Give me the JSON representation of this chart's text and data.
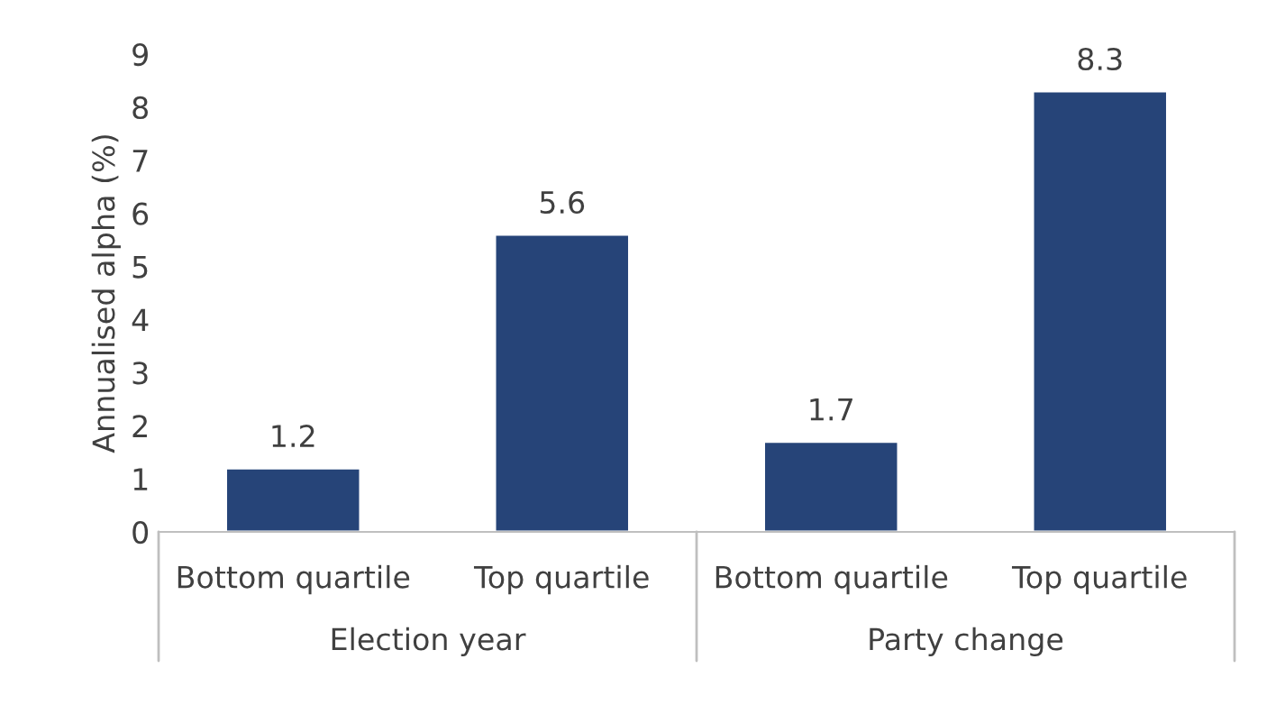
{
  "chart_data": {
    "type": "bar",
    "ylabel": "Annualised alpha (%)",
    "categories": [
      "Bottom quartile",
      "Top quartile",
      "Bottom quartile",
      "Top quartile"
    ],
    "values": [
      1.2,
      5.6,
      1.7,
      8.3
    ],
    "color": "#264478",
    "ylim": [
      0,
      9
    ],
    "yticks": [
      0,
      1,
      2,
      3,
      4,
      5,
      6,
      7,
      8,
      9
    ],
    "data_labels": true,
    "grid": false,
    "legend": false,
    "annotations": [
      "Election year",
      "Party change"
    ]
  }
}
